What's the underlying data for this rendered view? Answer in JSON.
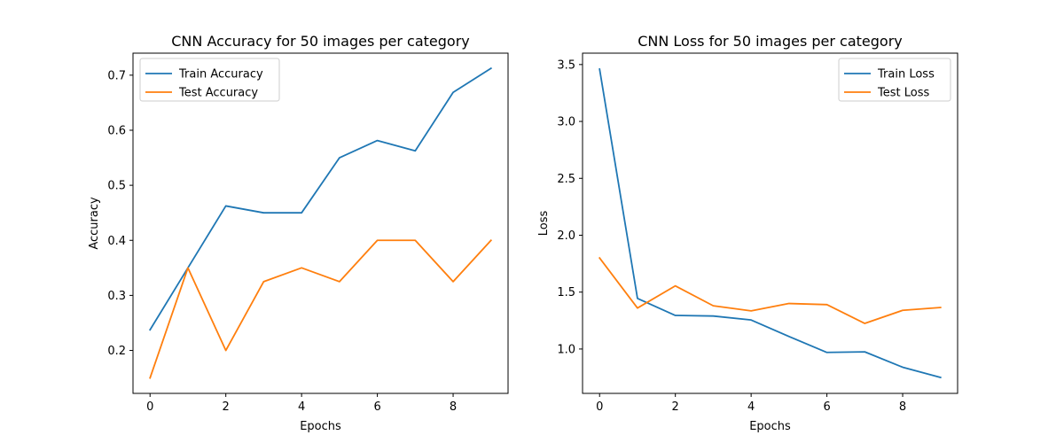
{
  "chart_data": [
    {
      "type": "line",
      "title": "CNN Accuracy for 50 images per category",
      "xlabel": "Epochs",
      "ylabel": "Accuracy",
      "x": [
        0,
        1,
        2,
        3,
        4,
        5,
        6,
        7,
        8,
        9
      ],
      "xlim": [
        -0.45,
        9.45
      ],
      "ylim": [
        0.122,
        0.74
      ],
      "xticks": [
        0,
        2,
        4,
        6,
        8
      ],
      "yticks": [
        0.2,
        0.3,
        0.4,
        0.5,
        0.6,
        0.7
      ],
      "grid": false,
      "legend_position": "top-left",
      "series": [
        {
          "name": "Train Accuracy",
          "color": "#1f77b4",
          "values": [
            0.2375,
            0.35,
            0.4625,
            0.45,
            0.45,
            0.55,
            0.5813,
            0.5625,
            0.6688,
            0.7125
          ]
        },
        {
          "name": "Test Accuracy",
          "color": "#ff7f0e",
          "values": [
            0.15,
            0.35,
            0.2,
            0.325,
            0.35,
            0.325,
            0.4,
            0.4,
            0.325,
            0.4
          ]
        }
      ]
    },
    {
      "type": "line",
      "title": "CNN Loss for 50 images per category",
      "xlabel": "Epochs",
      "ylabel": "Loss",
      "x": [
        0,
        1,
        2,
        3,
        4,
        5,
        6,
        7,
        8,
        9
      ],
      "xlim": [
        -0.45,
        9.45
      ],
      "ylim": [
        0.61,
        3.6
      ],
      "xticks": [
        0,
        2,
        4,
        6,
        8
      ],
      "yticks": [
        1.0,
        1.5,
        2.0,
        2.5,
        3.0,
        3.5
      ],
      "grid": false,
      "legend_position": "top-right",
      "series": [
        {
          "name": "Train Loss",
          "color": "#1f77b4",
          "values": [
            3.46,
            1.445,
            1.295,
            1.29,
            1.255,
            1.11,
            0.97,
            0.975,
            0.84,
            0.75
          ]
        },
        {
          "name": "Test Loss",
          "color": "#ff7f0e",
          "values": [
            1.8,
            1.36,
            1.555,
            1.38,
            1.335,
            1.4,
            1.39,
            1.225,
            1.34,
            1.365
          ]
        }
      ]
    }
  ]
}
